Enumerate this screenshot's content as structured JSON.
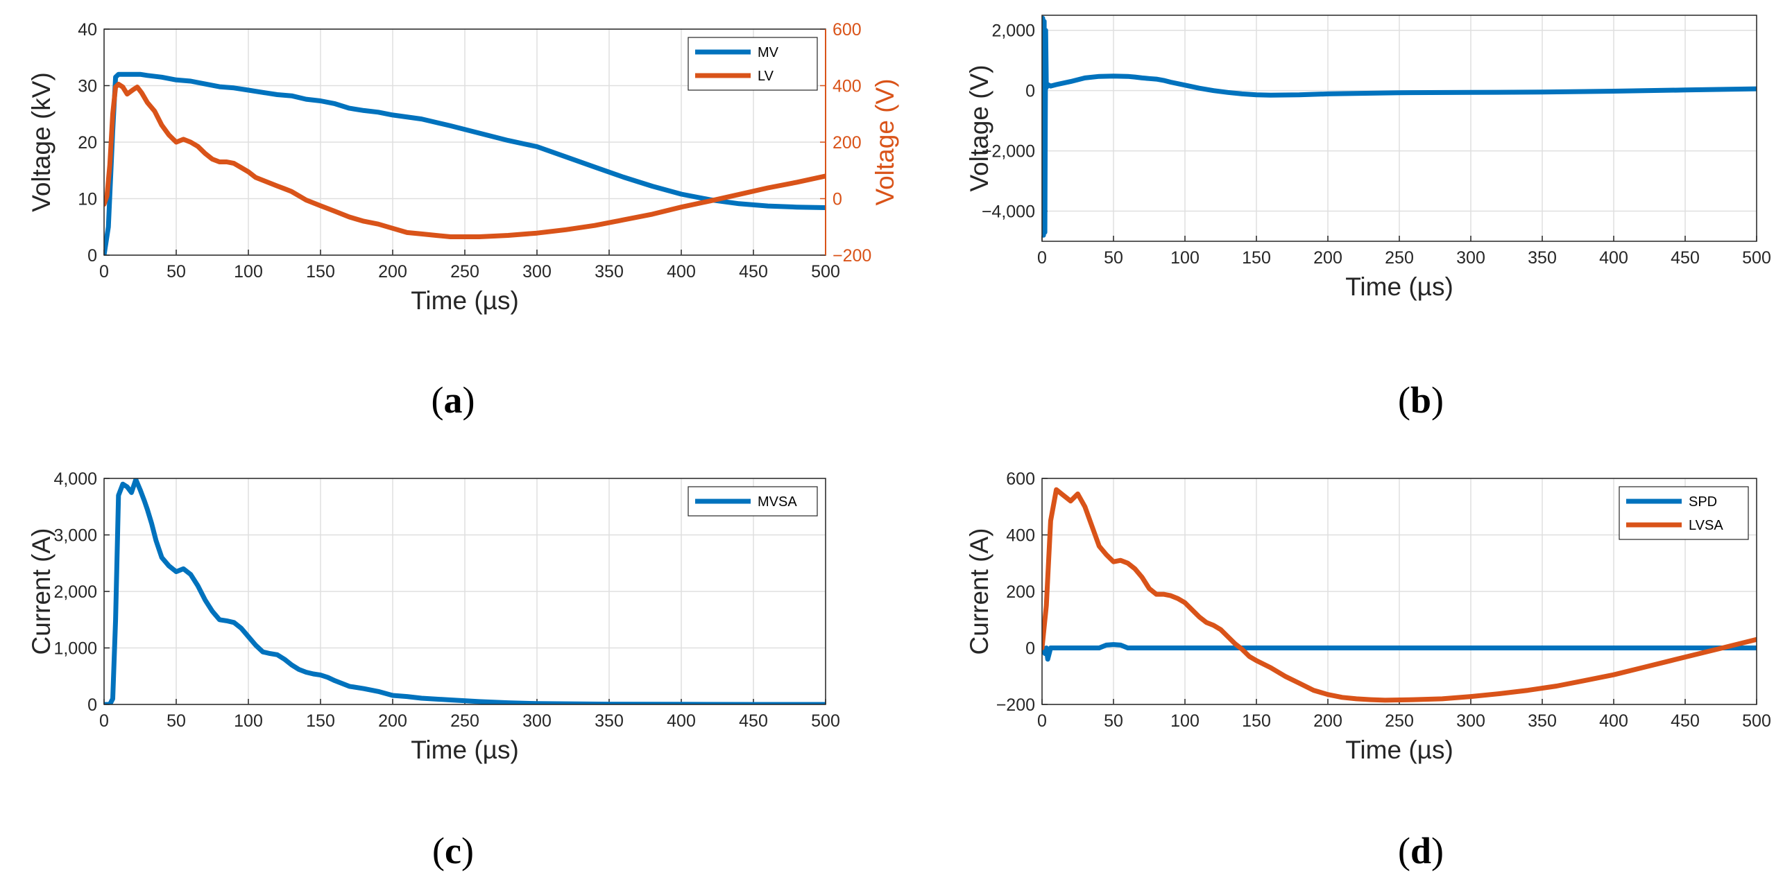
{
  "chart_data": [
    {
      "id": "a",
      "type": "line",
      "caption_letter": "a",
      "xlabel": "Time (µs)",
      "ylabel": "Voltage (kV)",
      "ylabel_right": "Voltage (V)",
      "xlim": [
        0,
        500
      ],
      "ylim": [
        0,
        40
      ],
      "ylim_right": [
        -200,
        600
      ],
      "xticks": [
        "0",
        "50",
        "100",
        "150",
        "200",
        "250",
        "300",
        "350",
        "400",
        "450",
        "500"
      ],
      "yticks": [
        "0",
        "10",
        "20",
        "30",
        "40"
      ],
      "yticks_right": [
        "−200",
        "0",
        "200",
        "400",
        "600"
      ],
      "grid": true,
      "legend_position": "top-right",
      "series": [
        {
          "name": "MV",
          "axis": "left",
          "color": "#0072BD",
          "x": [
            0,
            3,
            6,
            8,
            10,
            15,
            20,
            25,
            30,
            40,
            50,
            60,
            70,
            80,
            90,
            100,
            110,
            120,
            130,
            140,
            150,
            160,
            170,
            180,
            190,
            200,
            220,
            240,
            260,
            280,
            300,
            320,
            340,
            360,
            380,
            400,
            420,
            440,
            460,
            480,
            500
          ],
          "y": [
            0,
            5,
            22,
            31.5,
            32,
            32,
            32,
            32,
            31.8,
            31.5,
            31,
            30.8,
            30.3,
            29.8,
            29.6,
            29.2,
            28.8,
            28.4,
            28.2,
            27.6,
            27.3,
            26.8,
            26.0,
            25.6,
            25.3,
            24.8,
            24.1,
            22.9,
            21.6,
            20.3,
            19.2,
            17.4,
            15.6,
            13.8,
            12.2,
            10.8,
            9.8,
            9.1,
            8.7,
            8.5,
            8.4
          ]
        },
        {
          "name": "LV",
          "axis": "right",
          "color": "#D95319",
          "x": [
            0,
            2,
            4,
            6,
            8,
            10,
            13,
            16,
            20,
            23,
            26,
            30,
            35,
            40,
            45,
            50,
            55,
            60,
            65,
            70,
            75,
            80,
            85,
            90,
            95,
            100,
            105,
            110,
            115,
            120,
            125,
            130,
            135,
            140,
            145,
            150,
            160,
            170,
            180,
            190,
            200,
            210,
            220,
            230,
            240,
            260,
            280,
            300,
            320,
            340,
            360,
            380,
            400,
            420,
            440,
            460,
            480,
            500
          ],
          "y": [
            -20,
            10,
            120,
            300,
            395,
            405,
            395,
            370,
            385,
            395,
            375,
            340,
            310,
            260,
            225,
            200,
            210,
            200,
            185,
            160,
            140,
            130,
            130,
            125,
            110,
            95,
            75,
            65,
            55,
            45,
            35,
            25,
            10,
            -5,
            -15,
            -25,
            -45,
            -65,
            -80,
            -90,
            -105,
            -120,
            -125,
            -130,
            -135,
            -135,
            -130,
            -122,
            -110,
            -95,
            -75,
            -55,
            -30,
            -8,
            15,
            38,
            58,
            80
          ]
        }
      ]
    },
    {
      "id": "b",
      "type": "line",
      "caption_letter": "b",
      "xlabel": "Time (µs)",
      "ylabel": "Voltage (V)",
      "xlim": [
        0,
        500
      ],
      "ylim": [
        -5000,
        2500
      ],
      "xticks": [
        "0",
        "50",
        "100",
        "150",
        "200",
        "250",
        "300",
        "350",
        "400",
        "450",
        "500"
      ],
      "yticks": [
        "−4,000",
        "−2,000",
        "0",
        "2,000"
      ],
      "ytick_values": [
        -4000,
        -2000,
        0,
        2000
      ],
      "grid": true,
      "series": [
        {
          "name": "",
          "color": "#0072BD",
          "x": [
            0,
            0.5,
            1,
            1.5,
            2,
            2.5,
            3,
            4,
            6,
            10,
            20,
            30,
            40,
            50,
            60,
            65,
            70,
            75,
            80,
            85,
            90,
            100,
            110,
            120,
            130,
            140,
            150,
            160,
            180,
            200,
            250,
            300,
            350,
            400,
            450,
            500
          ],
          "y": [
            0,
            2400,
            -4800,
            2300,
            -4700,
            2000,
            100,
            200,
            150,
            200,
            300,
            420,
            470,
            480,
            470,
            450,
            420,
            400,
            380,
            340,
            280,
            180,
            80,
            0,
            -60,
            -110,
            -140,
            -150,
            -140,
            -110,
            -70,
            -60,
            -50,
            -20,
            20,
            60
          ]
        }
      ]
    },
    {
      "id": "c",
      "type": "line",
      "caption_letter": "c",
      "xlabel": "Time (µs)",
      "ylabel": "Current (A)",
      "xlim": [
        0,
        500
      ],
      "ylim": [
        0,
        4000
      ],
      "xticks": [
        "0",
        "50",
        "100",
        "150",
        "200",
        "250",
        "300",
        "350",
        "400",
        "450",
        "500"
      ],
      "yticks": [
        "0",
        "1,000",
        "2,000",
        "3,000",
        "4,000"
      ],
      "ytick_values": [
        0,
        1000,
        2000,
        3000,
        4000
      ],
      "grid": true,
      "legend_position": "top-right",
      "series": [
        {
          "name": "MVSA",
          "color": "#0072BD",
          "x": [
            0,
            4,
            6,
            8,
            10,
            13,
            16,
            19,
            22,
            25,
            28,
            30,
            33,
            36,
            40,
            45,
            50,
            55,
            60,
            65,
            70,
            75,
            80,
            85,
            90,
            95,
            100,
            105,
            110,
            115,
            120,
            125,
            130,
            135,
            140,
            145,
            150,
            155,
            160,
            170,
            180,
            190,
            200,
            210,
            220,
            240,
            260,
            280,
            300,
            350,
            400,
            450,
            500
          ],
          "y": [
            0,
            0,
            100,
            1500,
            3700,
            3900,
            3850,
            3750,
            3980,
            3800,
            3600,
            3450,
            3200,
            2900,
            2600,
            2450,
            2350,
            2400,
            2300,
            2100,
            1850,
            1650,
            1500,
            1480,
            1450,
            1350,
            1200,
            1050,
            930,
            900,
            880,
            800,
            700,
            620,
            570,
            540,
            520,
            480,
            420,
            320,
            280,
            230,
            160,
            140,
            110,
            80,
            50,
            30,
            15,
            5,
            2,
            0,
            0
          ]
        }
      ]
    },
    {
      "id": "d",
      "type": "line",
      "caption_letter": "d",
      "xlabel": "Time (µs)",
      "ylabel": "Current (A)",
      "xlim": [
        0,
        500
      ],
      "ylim": [
        -200,
        600
      ],
      "xticks": [
        "0",
        "50",
        "100",
        "150",
        "200",
        "250",
        "300",
        "350",
        "400",
        "450",
        "500"
      ],
      "yticks": [
        "−200",
        "0",
        "200",
        "400",
        "600"
      ],
      "ytick_values": [
        -200,
        0,
        200,
        400,
        600
      ],
      "grid": true,
      "legend_position": "top-right",
      "series": [
        {
          "name": "SPD",
          "color": "#0072BD",
          "x": [
            0,
            2,
            3,
            4,
            6,
            10,
            40,
            45,
            50,
            55,
            60,
            100,
            200,
            300,
            400,
            500
          ],
          "y": [
            0,
            -20,
            0,
            -40,
            0,
            0,
            0,
            10,
            12,
            10,
            0,
            0,
            0,
            0,
            0,
            0
          ]
        },
        {
          "name": "LVSA",
          "color": "#D95319",
          "x": [
            0,
            3,
            6,
            10,
            15,
            20,
            25,
            30,
            35,
            40,
            45,
            50,
            55,
            60,
            65,
            70,
            75,
            80,
            85,
            90,
            95,
            100,
            105,
            110,
            115,
            120,
            125,
            130,
            135,
            140,
            145,
            150,
            160,
            170,
            180,
            190,
            200,
            210,
            220,
            230,
            240,
            260,
            280,
            300,
            320,
            340,
            360,
            380,
            400,
            420,
            440,
            460,
            480,
            500
          ],
          "y": [
            0,
            150,
            450,
            560,
            540,
            520,
            545,
            500,
            430,
            360,
            330,
            305,
            310,
            300,
            280,
            250,
            210,
            190,
            190,
            185,
            175,
            160,
            135,
            110,
            90,
            80,
            65,
            40,
            15,
            -5,
            -30,
            -45,
            -70,
            -100,
            -125,
            -150,
            -165,
            -175,
            -180,
            -183,
            -185,
            -183,
            -180,
            -172,
            -162,
            -150,
            -135,
            -115,
            -95,
            -70,
            -45,
            -20,
            5,
            30
          ]
        }
      ]
    }
  ]
}
